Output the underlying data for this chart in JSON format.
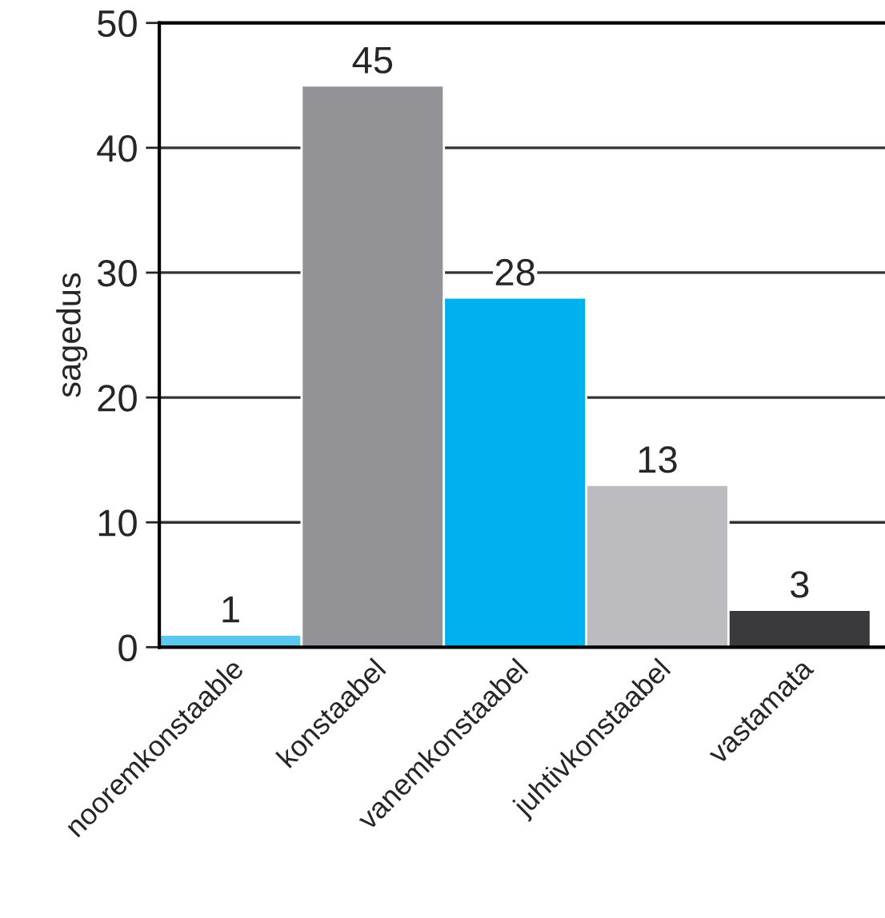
{
  "chart_data": {
    "type": "bar",
    "ylabel": "sagedus",
    "categories": [
      "nooremkonstaable",
      "konstaabel",
      "vanemkonstaabel",
      "juhtivkonstaabel",
      "vastamata"
    ],
    "values": [
      1,
      45,
      28,
      13,
      3
    ],
    "colors": [
      "#5bc8ef",
      "#939397",
      "#00b0ef",
      "#bcbcc0",
      "#3a3a3c"
    ],
    "ylim": [
      0,
      50
    ],
    "yticks": [
      0,
      10,
      20,
      30,
      40,
      50
    ],
    "grid": "y",
    "data_labels": true
  }
}
